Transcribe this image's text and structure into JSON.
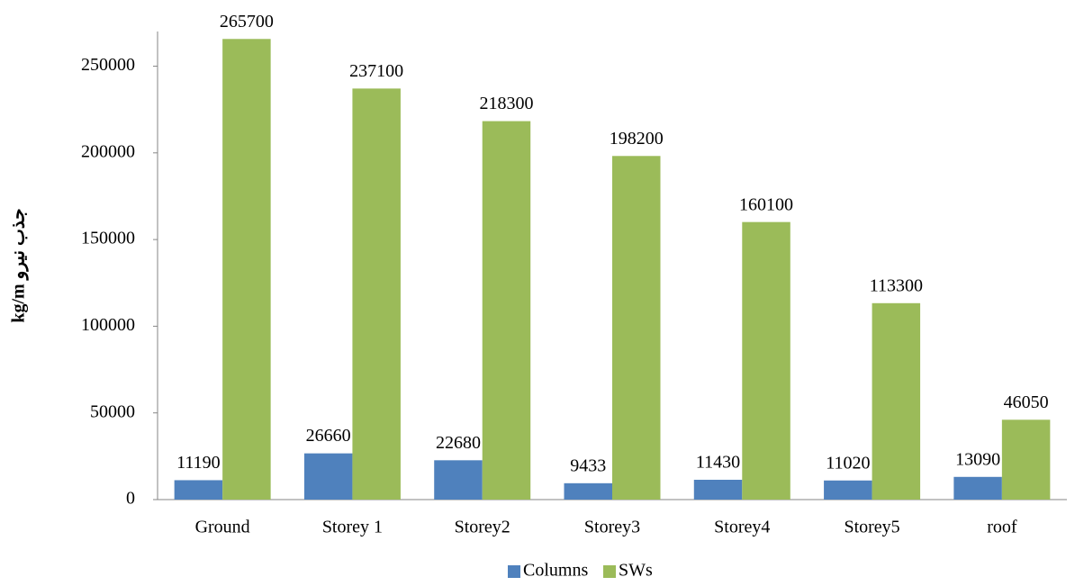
{
  "chart_data": {
    "type": "bar",
    "y_label": "kg/m جذب نیرو",
    "categories": [
      "Ground",
      "Storey 1",
      "Storey2",
      "Storey3",
      "Storey4",
      "Storey5",
      "roof"
    ],
    "series": [
      {
        "name": "Columns",
        "color": "#4f81bd",
        "values": [
          11190,
          26660,
          22680,
          9433,
          11430,
          11020,
          13090
        ]
      },
      {
        "name": "SWs",
        "color": "#9bbb59",
        "values": [
          265700,
          237100,
          218300,
          198200,
          160100,
          113300,
          46050
        ]
      }
    ],
    "ylim": [
      0,
      270000
    ],
    "yticks": [
      0,
      50000,
      100000,
      150000,
      200000,
      250000
    ],
    "grid": false,
    "legend": "bottom"
  }
}
